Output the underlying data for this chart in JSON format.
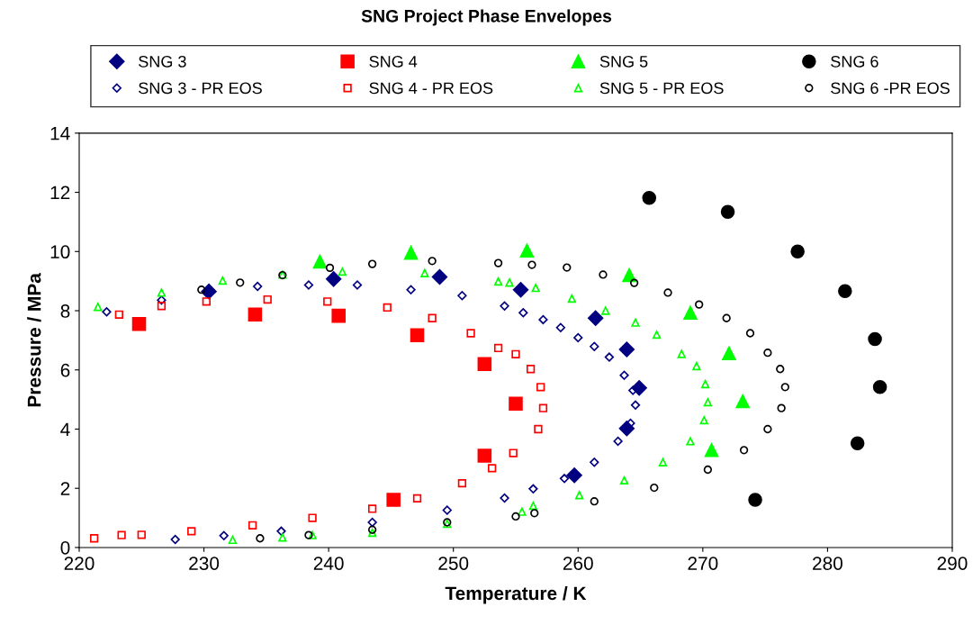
{
  "chart_data": {
    "type": "scatter",
    "title": "SNG Project Phase Envelopes",
    "xlabel": "Temperature / K",
    "ylabel": "Pressure / MPa",
    "xlim": [
      220,
      290
    ],
    "xticks": [
      220,
      230,
      240,
      250,
      260,
      270,
      280,
      290
    ],
    "ylim": [
      0,
      14
    ],
    "yticks": [
      0,
      2,
      4,
      6,
      8,
      10,
      12,
      14
    ],
    "grid": false,
    "legend": "top",
    "series": [
      {
        "name": "SNG 3",
        "color": "#000080",
        "marker": "diamond",
        "x": [
          230.4,
          240.4,
          248.9,
          255.4,
          261.4,
          263.9,
          264.9,
          263.9,
          259.7
        ],
        "values": [
          8.65,
          9.07,
          9.14,
          8.71,
          7.75,
          6.69,
          5.39,
          4.02,
          2.44
        ]
      },
      {
        "name": "SNG 4",
        "color": "#ff0000",
        "marker": "square",
        "x": [
          224.8,
          234.1,
          240.8,
          247.1,
          252.5,
          255.0,
          252.5,
          245.2
        ],
        "values": [
          7.55,
          7.87,
          7.83,
          7.17,
          6.2,
          4.86,
          3.1,
          1.61
        ]
      },
      {
        "name": "SNG 5",
        "color": "#00ff00",
        "marker": "triangle",
        "x": [
          239.3,
          246.6,
          255.9,
          264.1,
          269.0,
          272.1,
          273.2,
          270.7
        ],
        "values": [
          9.66,
          9.96,
          10.03,
          9.2,
          7.93,
          6.56,
          4.94,
          3.29
        ]
      },
      {
        "name": "SNG 6",
        "color": "#000000",
        "marker": "circle",
        "x": [
          265.7,
          272.0,
          277.6,
          281.4,
          283.8,
          284.2,
          282.4,
          274.2
        ],
        "values": [
          11.81,
          11.34,
          10.0,
          8.66,
          7.04,
          5.42,
          3.52,
          1.61
        ]
      },
      {
        "name": "SNG 3 - PR EOS",
        "color": "#000080",
        "marker": "diamond",
        "x": [
          227.7,
          231.6,
          236.2,
          243.5,
          249.5,
          254.1,
          256.4,
          258.9,
          261.3,
          263.2,
          264.2,
          264.6,
          264.4,
          263.7,
          262.5,
          261.3,
          260.0,
          258.6,
          257.2,
          255.6,
          254.1,
          250.7,
          246.6,
          242.3,
          238.4,
          234.3,
          230.2,
          226.6,
          222.2
        ],
        "values": [
          0.27,
          0.4,
          0.55,
          0.85,
          1.26,
          1.67,
          1.98,
          2.33,
          2.88,
          3.59,
          4.2,
          4.81,
          5.31,
          5.82,
          6.43,
          6.79,
          7.09,
          7.43,
          7.7,
          7.93,
          8.16,
          8.51,
          8.71,
          8.87,
          8.87,
          8.82,
          8.61,
          8.36,
          7.96
        ]
      },
      {
        "name": "SNG 4 - PR EOS",
        "color": "#ff0000",
        "marker": "square",
        "x": [
          221.2,
          223.4,
          225.0,
          229.0,
          233.9,
          238.7,
          243.5,
          247.1,
          250.7,
          253.1,
          254.8,
          256.8,
          257.2,
          257.0,
          256.2,
          255.0,
          253.6,
          251.4,
          248.3,
          244.7,
          239.9,
          235.1,
          230.2,
          226.6,
          223.2
        ],
        "values": [
          0.31,
          0.42,
          0.43,
          0.55,
          0.75,
          1.0,
          1.31,
          1.66,
          2.17,
          2.68,
          3.19,
          4.0,
          4.71,
          5.42,
          6.03,
          6.53,
          6.74,
          7.24,
          7.75,
          8.11,
          8.31,
          8.38,
          8.31,
          8.16,
          7.87
        ]
      },
      {
        "name": "SNG 5 - PR EOS",
        "color": "#00ff00",
        "marker": "triangle",
        "x": [
          232.3,
          236.3,
          238.7,
          243.5,
          249.5,
          255.5,
          256.4,
          260.1,
          263.7,
          266.8,
          269.0,
          270.1,
          270.4,
          270.2,
          269.5,
          268.3,
          266.3,
          264.6,
          262.2,
          259.5,
          256.6,
          254.5,
          253.6,
          247.7,
          241.1,
          236.3,
          231.5,
          226.6,
          221.5
        ],
        "values": [
          0.26,
          0.34,
          0.42,
          0.5,
          0.8,
          1.21,
          1.41,
          1.77,
          2.27,
          2.88,
          3.59,
          4.3,
          4.91,
          5.52,
          6.13,
          6.54,
          7.19,
          7.6,
          8.0,
          8.41,
          8.77,
          8.95,
          8.99,
          9.27,
          9.32,
          9.22,
          9.02,
          8.61,
          8.13
        ]
      },
      {
        "name": "SNG 6 -PR EOS",
        "color": "#000000",
        "marker": "circle",
        "x": [
          234.5,
          238.4,
          243.5,
          249.5,
          255.0,
          256.5,
          261.3,
          266.1,
          270.4,
          273.3,
          275.2,
          276.3,
          276.6,
          276.2,
          275.2,
          273.8,
          271.9,
          269.7,
          267.2,
          264.5,
          262.0,
          259.1,
          256.3,
          253.6,
          248.3,
          243.5,
          240.1,
          236.3,
          232.9,
          229.8
        ],
        "values": [
          0.31,
          0.42,
          0.6,
          0.85,
          1.05,
          1.16,
          1.56,
          2.02,
          2.63,
          3.29,
          4.0,
          4.71,
          5.42,
          6.03,
          6.58,
          7.24,
          7.75,
          8.21,
          8.61,
          8.94,
          9.22,
          9.46,
          9.55,
          9.61,
          9.68,
          9.58,
          9.45,
          9.2,
          8.95,
          8.71
        ]
      }
    ]
  }
}
